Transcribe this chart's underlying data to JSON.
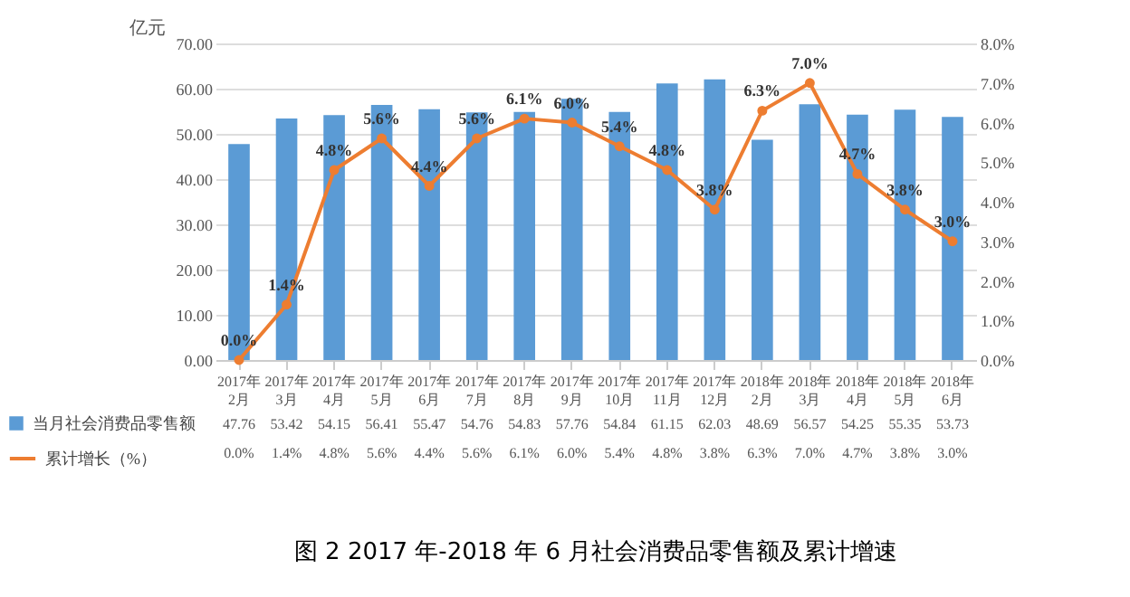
{
  "chart_data": {
    "type": "bar",
    "title": "图 2     2017 年-2018 年 6 月社会消费品零售额及累计增速",
    "ylabel": "亿元",
    "categories": [
      "2017年\n2月",
      "2017年\n3月",
      "2017年\n4月",
      "2017年\n5月",
      "2017年\n6月",
      "2017年\n7月",
      "2017年\n8月",
      "2017年\n9月",
      "2017年\n10月",
      "2017年\n11月",
      "2017年\n12月",
      "2018年\n2月",
      "2018年\n3月",
      "2018年\n4月",
      "2018年\n5月",
      "2018年\n6月"
    ],
    "series": [
      {
        "name": "当月社会消费品零售额",
        "color": "#5b9bd5",
        "values": [
          47.76,
          53.42,
          54.15,
          56.41,
          55.47,
          54.76,
          54.83,
          57.76,
          54.84,
          61.15,
          62.03,
          48.69,
          56.57,
          54.25,
          55.35,
          53.73
        ],
        "value_labels": [
          "47.76",
          "53.42",
          "54.15",
          "56.41",
          "55.47",
          "54.76",
          "54.83",
          "57.76",
          "54.84",
          "61.15",
          "62.03",
          "48.69",
          "56.57",
          "54.25",
          "55.35",
          "53.73"
        ]
      },
      {
        "name": "累计增长（%）",
        "type": "line",
        "axis": "y2",
        "color": "#ed7d31",
        "values": [
          0.0,
          1.4,
          4.8,
          5.6,
          4.4,
          5.6,
          6.1,
          6.0,
          5.4,
          4.8,
          3.8,
          6.3,
          7.0,
          4.7,
          3.8,
          3.0
        ],
        "value_labels": [
          "0.0%",
          "1.4%",
          "4.8%",
          "5.6%",
          "4.4%",
          "5.6%",
          "6.1%",
          "6.0%",
          "5.4%",
          "4.8%",
          "3.8%",
          "6.3%",
          "7.0%",
          "4.7%",
          "3.8%",
          "3.0%"
        ]
      }
    ],
    "ylim": [
      0,
      70
    ],
    "yticks": [
      {
        "value": 0,
        "label": "0.00"
      },
      {
        "value": 10,
        "label": "10.00"
      },
      {
        "value": 20,
        "label": "20.00"
      },
      {
        "value": 30,
        "label": "30.00"
      },
      {
        "value": 40,
        "label": "40.00"
      },
      {
        "value": 50,
        "label": "50.00"
      },
      {
        "value": 60,
        "label": "60.00"
      },
      {
        "value": 70,
        "label": "70.00"
      }
    ],
    "y2lim": [
      0,
      8
    ],
    "y2ticks": [
      {
        "value": 0,
        "label": "0.0%"
      },
      {
        "value": 1,
        "label": "1.0%"
      },
      {
        "value": 2,
        "label": "2.0%"
      },
      {
        "value": 3,
        "label": "3.0%"
      },
      {
        "value": 4,
        "label": "4.0%"
      },
      {
        "value": 5,
        "label": "5.0%"
      },
      {
        "value": 6,
        "label": "6.0%"
      },
      {
        "value": 7,
        "label": "7.0%"
      },
      {
        "value": 8,
        "label": "8.0%"
      }
    ],
    "grid": "y",
    "legend": "bottom left",
    "marker": "circle",
    "line_style": "solid"
  }
}
